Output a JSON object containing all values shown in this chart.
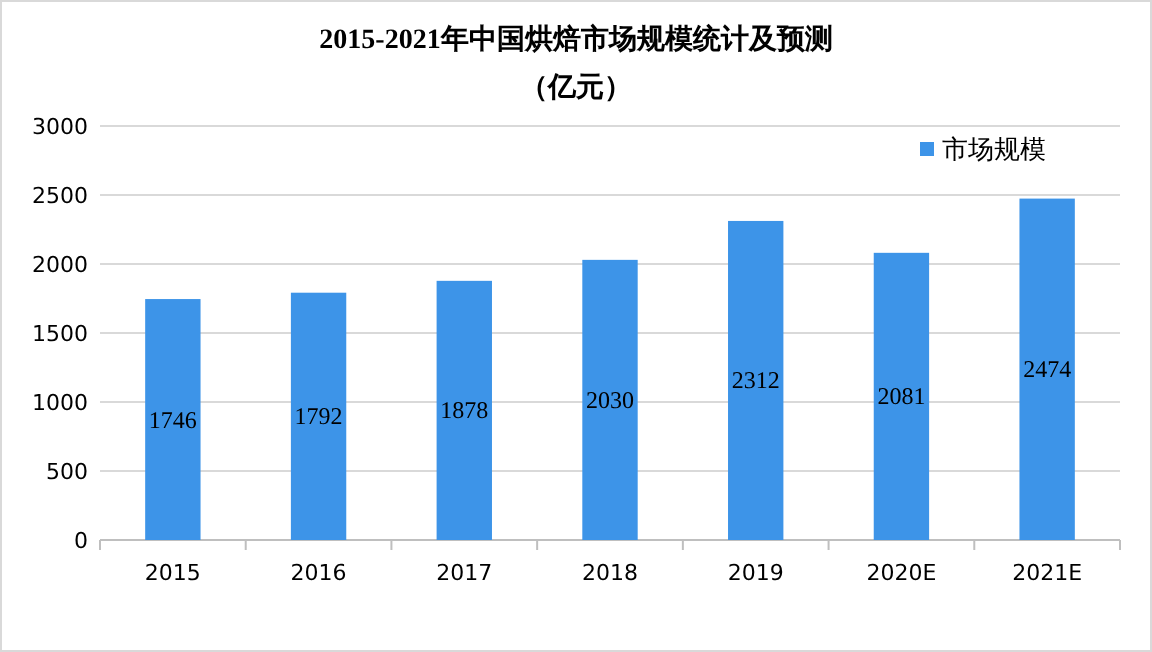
{
  "chart_data": {
    "type": "bar",
    "title": "2015-2021年中国烘焙市场规模统计及预测",
    "subtitle": "（亿元）",
    "categories": [
      "2015",
      "2016",
      "2017",
      "2018",
      "2019",
      "2020E",
      "2021E"
    ],
    "series": [
      {
        "name": "市场规模",
        "color": "#3d94e8",
        "values": [
          1746,
          1792,
          1878,
          2030,
          2312,
          2081,
          2474
        ]
      }
    ],
    "ylim": [
      0,
      3000
    ],
    "yticks": [
      0,
      500,
      1000,
      1500,
      2000,
      2500,
      3000
    ],
    "grid": "y",
    "legend": "top right",
    "data_labels": true
  }
}
